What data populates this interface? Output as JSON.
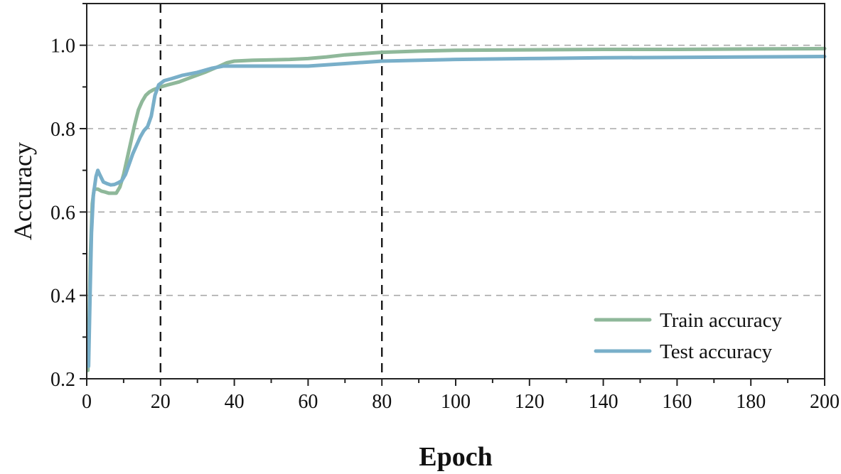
{
  "chart_data": {
    "type": "line",
    "xlabel": "Epoch",
    "ylabel": "Accuracy",
    "xlim": [
      0,
      200
    ],
    "ylim": [
      0.2,
      1.1
    ],
    "x_ticks": [
      0,
      20,
      40,
      60,
      80,
      100,
      120,
      140,
      160,
      180,
      200
    ],
    "y_ticks": [
      0.2,
      0.4,
      0.6,
      0.8,
      1.0
    ],
    "y_tick_labels": [
      "0.2",
      "0.4",
      "0.6",
      "0.8",
      "1.0"
    ],
    "grid": {
      "horizontal_dashed": true,
      "vertical": false
    },
    "reference_lines_x": [
      20,
      80
    ],
    "legend": {
      "position": "lower-right"
    },
    "series": [
      {
        "name": "Train accuracy",
        "color": "#8fb89a",
        "x": [
          0.3,
          0.7,
          1.0,
          1.5,
          2.0,
          3.0,
          4.0,
          5.0,
          6.0,
          7.0,
          8.0,
          9.0,
          10.0,
          11.0,
          12.0,
          13.0,
          14.0,
          15.0,
          16.0,
          17.0,
          18.0,
          20.0,
          22.0,
          25.0,
          28.0,
          32.0,
          36.0,
          38.0,
          40.0,
          45.0,
          50.0,
          55.0,
          60.0,
          65.0,
          70.0,
          75.0,
          80.0,
          90.0,
          100.0,
          120.0,
          140.0,
          160.0,
          180.0,
          200.0
        ],
        "values": [
          0.22,
          0.35,
          0.5,
          0.62,
          0.655,
          0.655,
          0.65,
          0.648,
          0.645,
          0.645,
          0.645,
          0.66,
          0.69,
          0.73,
          0.77,
          0.81,
          0.845,
          0.865,
          0.88,
          0.888,
          0.893,
          0.9,
          0.905,
          0.912,
          0.922,
          0.935,
          0.95,
          0.958,
          0.962,
          0.964,
          0.965,
          0.966,
          0.968,
          0.972,
          0.977,
          0.98,
          0.983,
          0.986,
          0.988,
          0.989,
          0.99,
          0.99,
          0.991,
          0.992
        ]
      },
      {
        "name": "Test accuracy",
        "color": "#79afc9",
        "x": [
          0.5,
          0.9,
          1.3,
          1.8,
          2.5,
          3.0,
          3.5,
          4.5,
          5.5,
          6.5,
          7.5,
          8.5,
          9.5,
          10.5,
          11.5,
          12.5,
          13.5,
          14.5,
          15.5,
          16.5,
          17.5,
          18.5,
          19.5,
          21.0,
          23.0,
          26.0,
          30.0,
          34.0,
          37.0,
          40.0,
          45.0,
          50.0,
          60.0,
          70.0,
          80.0,
          100.0,
          120.0,
          140.0,
          160.0,
          180.0,
          200.0
        ],
        "values": [
          0.23,
          0.4,
          0.55,
          0.64,
          0.685,
          0.7,
          0.69,
          0.672,
          0.668,
          0.665,
          0.666,
          0.67,
          0.675,
          0.69,
          0.715,
          0.74,
          0.76,
          0.78,
          0.795,
          0.805,
          0.83,
          0.88,
          0.905,
          0.915,
          0.92,
          0.928,
          0.935,
          0.945,
          0.95,
          0.95,
          0.95,
          0.95,
          0.95,
          0.956,
          0.962,
          0.966,
          0.968,
          0.97,
          0.971,
          0.972,
          0.973
        ]
      }
    ]
  }
}
